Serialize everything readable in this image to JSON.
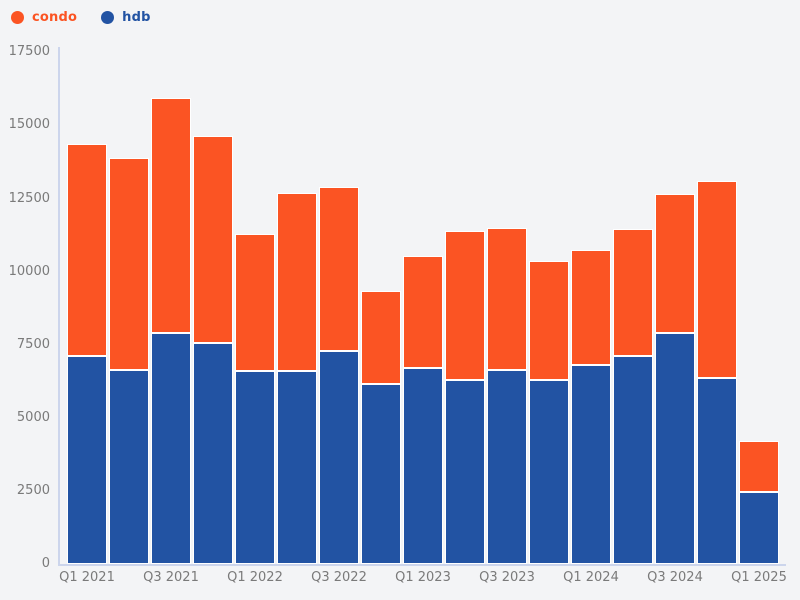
{
  "chart_data": {
    "type": "bar",
    "stacked": true,
    "title": "",
    "xlabel": "",
    "ylabel": "",
    "categories": [
      "Q1 2021",
      "Q2 2021",
      "Q3 2021",
      "Q4 2021",
      "Q1 2022",
      "Q2 2022",
      "Q3 2022",
      "Q4 2022",
      "Q1 2023",
      "Q2 2023",
      "Q3 2023",
      "Q4 2023",
      "Q1 2024",
      "Q2 2024",
      "Q3 2024",
      "Q4 2024",
      "Q1 2025"
    ],
    "series": [
      {
        "name": "condo",
        "color": "#fb5423",
        "values": [
          7250,
          7250,
          8050,
          7100,
          4700,
          6100,
          5600,
          3200,
          3850,
          5100,
          4850,
          4050,
          3950,
          4350,
          4750,
          6750,
          1750
        ]
      },
      {
        "name": "hdb",
        "color": "#2253a3",
        "values": [
          7100,
          6650,
          7900,
          7550,
          6600,
          6600,
          7300,
          6150,
          6700,
          6300,
          6650,
          6300,
          6800,
          7100,
          7900,
          6350,
          2450
        ]
      }
    ],
    "stack_order_bottom_to_top": [
      "hdb",
      "condo"
    ],
    "ylim": [
      0,
      17500
    ],
    "y_ticks": [
      0,
      2500,
      5000,
      7500,
      10000,
      12500,
      15000,
      17500
    ],
    "x_tick_labels": [
      "Q1 2021",
      "Q3 2021",
      "Q1 2022",
      "Q3 2022",
      "Q1 2023",
      "Q3 2023",
      "Q1 2024",
      "Q3 2024",
      "Q1 2025"
    ],
    "x_tick_every": 2,
    "grid": false,
    "legend_position": "top-left",
    "background_color": "#f3f4f6",
    "axis_line_color": "#ccd5ec",
    "tick_label_color": "#7a7a7a",
    "bar_border_color": "#ffffff"
  }
}
